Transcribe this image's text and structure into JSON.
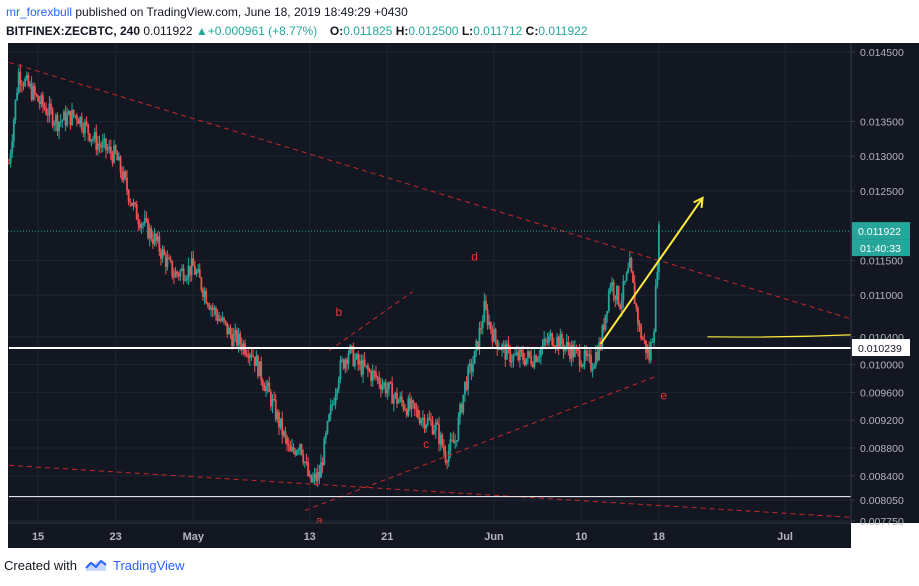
{
  "header": {
    "author": "mr_forexbull",
    "published_text": "published on TradingView.com, June 18, 2019 18:49:29 +0430",
    "symbol": "BITFINEX:ZECBTC, 240",
    "last": "0.011922",
    "change_arrow": "▲",
    "change": "+0.000961 (+8.77%)",
    "o_label": "O:",
    "o_value": "0.011825",
    "h_label": "H:",
    "h_value": "0.012500",
    "l_label": "L:",
    "l_value": "0.011712",
    "c_label": "C:",
    "c_value": "0.011922"
  },
  "footer": {
    "created_with": "Created with",
    "brand": "TradingView",
    "logo_icon": "tradingview-logo-icon"
  },
  "colors": {
    "background": "#131722",
    "grid": "#1f2434",
    "candle_up": "#26a69a",
    "candle_down": "#ef5350",
    "trendline": "#c62828",
    "label": "#e53935",
    "support": "#ffffff",
    "arrow": "#ffeb3b",
    "last_price_bg": "#26a69a",
    "axis_text": "#b2b5be"
  },
  "chart_data": {
    "type": "candlestick",
    "symbol": "BITFINEX:ZECBTC",
    "timeframe": "240",
    "ylim": [
      0.00772,
      0.01463
    ],
    "y_ticks": [
      "0.014500",
      "0.013500",
      "0.013000",
      "0.012500",
      "0.011500",
      "0.011000",
      "0.010400",
      "0.010000",
      "0.009600",
      "0.009200",
      "0.008800",
      "0.008400",
      "0.008050",
      "0.007750"
    ],
    "x_ticks": [
      {
        "label": "15",
        "day": 15
      },
      {
        "label": "23",
        "day": 23
      },
      {
        "label": "May",
        "day": 31
      },
      {
        "label": "13",
        "day": 43
      },
      {
        "label": "21",
        "day": 51
      },
      {
        "label": "Jun",
        "day": 62
      },
      {
        "label": "10",
        "day": 71
      },
      {
        "label": "18",
        "day": 79
      },
      {
        "label": "Jul",
        "day": 92
      }
    ],
    "xlim": [
      11.9,
      98.8
    ],
    "last_price": {
      "value": 0.011922,
      "label": "0.011922",
      "countdown": "01:40:33"
    },
    "level_labels": [
      {
        "value": 0.010239,
        "label": "0.010239"
      }
    ],
    "price_path": [
      [
        12,
        0.0129
      ],
      [
        13,
        0.0142
      ],
      [
        15,
        0.0138
      ],
      [
        17,
        0.0135
      ],
      [
        19,
        0.0136
      ],
      [
        21,
        0.0132
      ],
      [
        23,
        0.013
      ],
      [
        25,
        0.0122
      ],
      [
        27,
        0.0118
      ],
      [
        29,
        0.0113
      ],
      [
        31,
        0.0114
      ],
      [
        33,
        0.0108
      ],
      [
        35,
        0.0104
      ],
      [
        37,
        0.0102
      ],
      [
        39,
        0.0095
      ],
      [
        41,
        0.0087
      ],
      [
        42,
        0.0089
      ],
      [
        43,
        0.0083
      ],
      [
        44,
        0.0084
      ],
      [
        45,
        0.0092
      ],
      [
        46,
        0.0099
      ],
      [
        47,
        0.0102
      ],
      [
        48,
        0.01
      ],
      [
        50,
        0.0098
      ],
      [
        52,
        0.0095
      ],
      [
        54,
        0.0093
      ],
      [
        56,
        0.0091
      ],
      [
        57,
        0.0087
      ],
      [
        58,
        0.0089
      ],
      [
        59,
        0.0097
      ],
      [
        60,
        0.0101
      ],
      [
        61,
        0.0108
      ],
      [
        62,
        0.0104
      ],
      [
        63,
        0.0102
      ],
      [
        64,
        0.0101
      ],
      [
        66,
        0.0101
      ],
      [
        68,
        0.0104
      ],
      [
        70,
        0.0102
      ],
      [
        72,
        0.01
      ],
      [
        73,
        0.0103
      ],
      [
        74,
        0.0112
      ],
      [
        75,
        0.0109
      ],
      [
        76,
        0.0114
      ],
      [
        77,
        0.0105
      ],
      [
        78,
        0.0101
      ],
      [
        78.5,
        0.0106
      ],
      [
        79,
        0.0119
      ]
    ],
    "annotations": {
      "lines": [
        {
          "style": "dashed",
          "color": "trendline",
          "from": [
            12,
            0.01435
          ],
          "to": [
            99,
            0.01065
          ]
        },
        {
          "style": "dashed",
          "color": "trendline",
          "from": [
            12,
            0.00855
          ],
          "to": [
            99,
            0.0078
          ]
        },
        {
          "style": "dashed",
          "color": "trendline",
          "from": [
            42.5,
            0.0079
          ],
          "to": [
            78.5,
            0.00982
          ]
        },
        {
          "style": "dashed",
          "color": "trendline",
          "from": [
            45,
            0.0102
          ],
          "to": [
            53.6,
            0.01105
          ]
        },
        {
          "style": "solid",
          "color": "support",
          "width": 2,
          "from": [
            12,
            0.01024
          ],
          "to": [
            99,
            0.01024
          ]
        },
        {
          "style": "solid",
          "color": "support",
          "width": 1,
          "from": [
            12,
            0.0081
          ],
          "to": [
            99,
            0.0081
          ]
        }
      ],
      "labels": [
        {
          "text": "a",
          "at": [
            44,
            0.0077
          ]
        },
        {
          "text": "b",
          "at": [
            46,
            0.0107
          ]
        },
        {
          "text": "c",
          "at": [
            55,
            0.0088
          ]
        },
        {
          "text": "d",
          "at": [
            60,
            0.0115
          ]
        },
        {
          "text": "e",
          "at": [
            79.5,
            0.0095
          ]
        }
      ],
      "arrow": {
        "color": "arrow",
        "from": [
          73,
          0.0103
        ],
        "to": [
          83.5,
          0.0124
        ]
      },
      "curve": {
        "color": "arrow",
        "from": [
          84,
          0.0104
        ],
        "to": [
          99,
          0.01043
        ]
      }
    }
  }
}
